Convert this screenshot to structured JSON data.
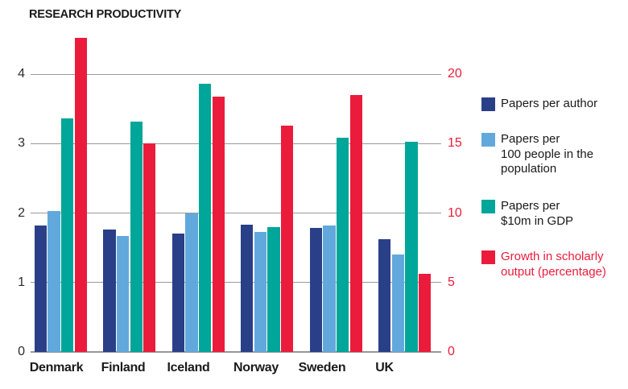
{
  "title": "RESEARCH PRODUCTIVITY",
  "chart_data": {
    "type": "bar",
    "title": "RESEARCH PRODUCTIVITY",
    "categories": [
      "Denmark",
      "Finland",
      "Iceland",
      "Norway",
      "Sweden",
      "UK"
    ],
    "series": [
      {
        "name": "Papers per author",
        "axis": "left",
        "color": "#293f87",
        "values": [
          1.82,
          1.76,
          1.7,
          1.83,
          1.79,
          1.62
        ]
      },
      {
        "name": "Papers per 100 people in the population",
        "axis": "left",
        "color": "#61a9dc",
        "values": [
          2.03,
          1.67,
          2.0,
          1.73,
          1.82,
          1.4
        ]
      },
      {
        "name": "Papers per $10m in GDP",
        "axis": "left",
        "color": "#00a69a",
        "values": [
          3.36,
          3.32,
          3.86,
          1.8,
          3.09,
          3.03
        ]
      },
      {
        "name": "Growth in scholarly output (percentage)",
        "axis": "right",
        "color": "#eb1c3b",
        "values": [
          22.6,
          15.0,
          18.4,
          16.3,
          18.5,
          5.6
        ]
      }
    ],
    "left_axis": {
      "ticks": [
        0,
        1,
        2,
        3,
        4
      ],
      "range": [
        0,
        4.6
      ],
      "label_color": "#2b2b2b"
    },
    "right_axis": {
      "ticks": [
        0,
        5,
        10,
        15,
        20
      ],
      "range": [
        0,
        23
      ],
      "label_color": "#eb1c3b"
    },
    "grid": "horizontal-only",
    "legend_position": "right"
  },
  "legend": {
    "items": [
      {
        "label": "Papers per author",
        "color": "#293f87",
        "text_color": "#1a1a1a"
      },
      {
        "label": "Papers per\n100 people in the\npopulation",
        "color": "#61a9dc",
        "text_color": "#1a1a1a"
      },
      {
        "label": "Papers per\n$10m in GDP",
        "color": "#00a69a",
        "text_color": "#1a1a1a"
      },
      {
        "label": "Growth in scholarly\noutput (percentage)",
        "color": "#eb1c3b",
        "text_color": "#eb1c3b"
      }
    ]
  }
}
